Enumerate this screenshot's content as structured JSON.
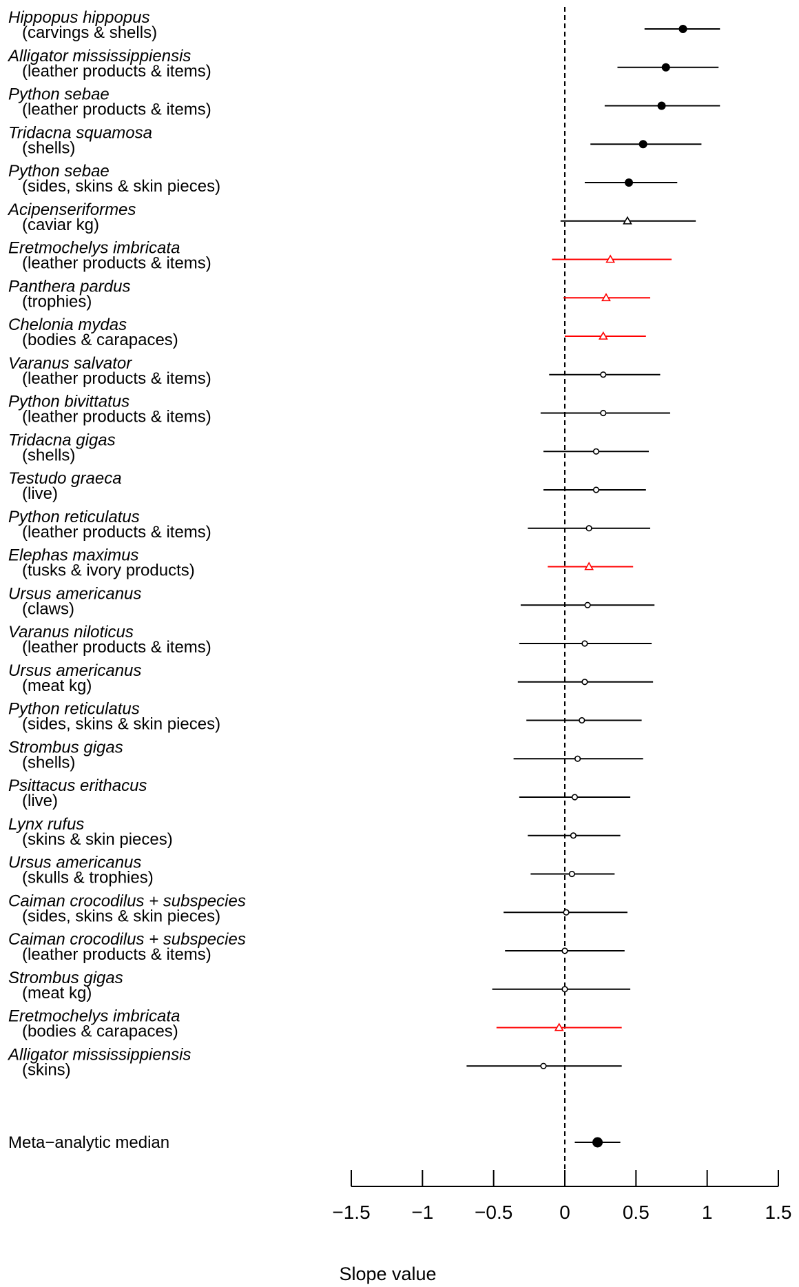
{
  "chart_data": {
    "type": "forest",
    "xlabel": "Slope value",
    "xlim": [
      -1.5,
      1.5
    ],
    "xticks": [
      -1.5,
      -1,
      -0.5,
      0,
      0.5,
      1,
      1.5
    ],
    "xtick_labels": [
      "−1.5",
      "−1",
      "−0.5",
      "0",
      "0.5",
      "1",
      "1.5"
    ],
    "reference_line": 0,
    "colors": {
      "default": "#000000",
      "highlight": "#ff0000"
    },
    "rows": [
      {
        "species": "Hippopus hippopus",
        "product": "(carvings & shells)",
        "estimate": 0.83,
        "lower": 0.56,
        "upper": 1.09,
        "marker": "filled-circle",
        "color": "#000000"
      },
      {
        "species": "Alligator mississippiensis",
        "product": "(leather products & items)",
        "estimate": 0.71,
        "lower": 0.37,
        "upper": 1.08,
        "marker": "filled-circle",
        "color": "#000000"
      },
      {
        "species": "Python sebae",
        "product": "(leather products & items)",
        "estimate": 0.68,
        "lower": 0.28,
        "upper": 1.09,
        "marker": "filled-circle",
        "color": "#000000"
      },
      {
        "species": "Tridacna squamosa",
        "product": "(shells)",
        "estimate": 0.55,
        "lower": 0.18,
        "upper": 0.96,
        "marker": "filled-circle",
        "color": "#000000"
      },
      {
        "species": "Python sebae",
        "product": "(sides, skins & skin pieces)",
        "estimate": 0.45,
        "lower": 0.14,
        "upper": 0.79,
        "marker": "filled-circle",
        "color": "#000000"
      },
      {
        "species": "Acipenseriformes",
        "product": "(caviar kg)",
        "estimate": 0.44,
        "lower": -0.03,
        "upper": 0.92,
        "marker": "open-triangle",
        "color": "#000000"
      },
      {
        "species": "Eretmochelys imbricata",
        "product": "(leather products & items)",
        "estimate": 0.32,
        "lower": -0.09,
        "upper": 0.75,
        "marker": "open-triangle",
        "color": "#ff0000"
      },
      {
        "species": "Panthera pardus",
        "product": "(trophies)",
        "estimate": 0.29,
        "lower": -0.01,
        "upper": 0.6,
        "marker": "open-triangle",
        "color": "#ff0000"
      },
      {
        "species": "Chelonia mydas",
        "product": "(bodies & carapaces)",
        "estimate": 0.27,
        "lower": 0.0,
        "upper": 0.57,
        "marker": "open-triangle",
        "color": "#ff0000"
      },
      {
        "species": "Varanus salvator",
        "product": "(leather products & items)",
        "estimate": 0.27,
        "lower": -0.11,
        "upper": 0.67,
        "marker": "open-circle",
        "color": "#000000"
      },
      {
        "species": "Python bivittatus",
        "product": "(leather products & items)",
        "estimate": 0.27,
        "lower": -0.17,
        "upper": 0.74,
        "marker": "open-circle",
        "color": "#000000"
      },
      {
        "species": "Tridacna gigas",
        "product": "(shells)",
        "estimate": 0.22,
        "lower": -0.15,
        "upper": 0.59,
        "marker": "open-circle",
        "color": "#000000"
      },
      {
        "species": "Testudo graeca",
        "product": "(live)",
        "estimate": 0.22,
        "lower": -0.15,
        "upper": 0.57,
        "marker": "open-circle",
        "color": "#000000"
      },
      {
        "species": "Python reticulatus",
        "product": "(leather products & items)",
        "estimate": 0.17,
        "lower": -0.26,
        "upper": 0.6,
        "marker": "open-circle",
        "color": "#000000"
      },
      {
        "species": "Elephas maximus",
        "product": "(tusks & ivory products)",
        "estimate": 0.17,
        "lower": -0.12,
        "upper": 0.48,
        "marker": "open-triangle",
        "color": "#ff0000"
      },
      {
        "species": "Ursus americanus",
        "product": "(claws)",
        "estimate": 0.16,
        "lower": -0.31,
        "upper": 0.63,
        "marker": "open-circle",
        "color": "#000000"
      },
      {
        "species": "Varanus niloticus",
        "product": "(leather products & items)",
        "estimate": 0.14,
        "lower": -0.32,
        "upper": 0.61,
        "marker": "open-circle",
        "color": "#000000"
      },
      {
        "species": "Ursus americanus",
        "product": "(meat kg)",
        "estimate": 0.14,
        "lower": -0.33,
        "upper": 0.62,
        "marker": "open-circle",
        "color": "#000000"
      },
      {
        "species": "Python reticulatus",
        "product": "(sides, skins & skin pieces)",
        "estimate": 0.12,
        "lower": -0.27,
        "upper": 0.54,
        "marker": "open-circle",
        "color": "#000000"
      },
      {
        "species": "Strombus gigas",
        "product": "(shells)",
        "estimate": 0.09,
        "lower": -0.36,
        "upper": 0.55,
        "marker": "open-circle",
        "color": "#000000"
      },
      {
        "species": "Psittacus erithacus",
        "product": "(live)",
        "estimate": 0.07,
        "lower": -0.32,
        "upper": 0.46,
        "marker": "open-circle",
        "color": "#000000"
      },
      {
        "species": "Lynx rufus",
        "product": "(skins & skin pieces)",
        "estimate": 0.06,
        "lower": -0.26,
        "upper": 0.39,
        "marker": "open-circle",
        "color": "#000000"
      },
      {
        "species": "Ursus americanus",
        "product": "(skulls & trophies)",
        "estimate": 0.05,
        "lower": -0.24,
        "upper": 0.35,
        "marker": "open-circle",
        "color": "#000000"
      },
      {
        "species": "Caiman crocodilus + subspecies",
        "product": "(sides, skins & skin pieces)",
        "estimate": 0.01,
        "lower": -0.43,
        "upper": 0.44,
        "marker": "open-circle",
        "color": "#000000"
      },
      {
        "species": "Caiman crocodilus + subspecies",
        "product": "(leather products & items)",
        "estimate": 0.0,
        "lower": -0.42,
        "upper": 0.42,
        "marker": "open-circle",
        "color": "#000000"
      },
      {
        "species": "Strombus gigas",
        "product": "(meat kg)",
        "estimate": 0.0,
        "lower": -0.51,
        "upper": 0.46,
        "marker": "open-circle",
        "color": "#000000"
      },
      {
        "species": "Eretmochelys imbricata",
        "product": "(bodies & carapaces)",
        "estimate": -0.04,
        "lower": -0.48,
        "upper": 0.4,
        "marker": "open-triangle",
        "color": "#ff0000"
      },
      {
        "species": "Alligator mississippiensis",
        "product": "(skins)",
        "estimate": -0.15,
        "lower": -0.69,
        "upper": 0.4,
        "marker": "open-circle",
        "color": "#000000"
      }
    ],
    "summary": {
      "label": "Meta−analytic median",
      "estimate": 0.23,
      "lower": 0.07,
      "upper": 0.39,
      "marker": "filled-circle-large",
      "color": "#000000"
    }
  }
}
